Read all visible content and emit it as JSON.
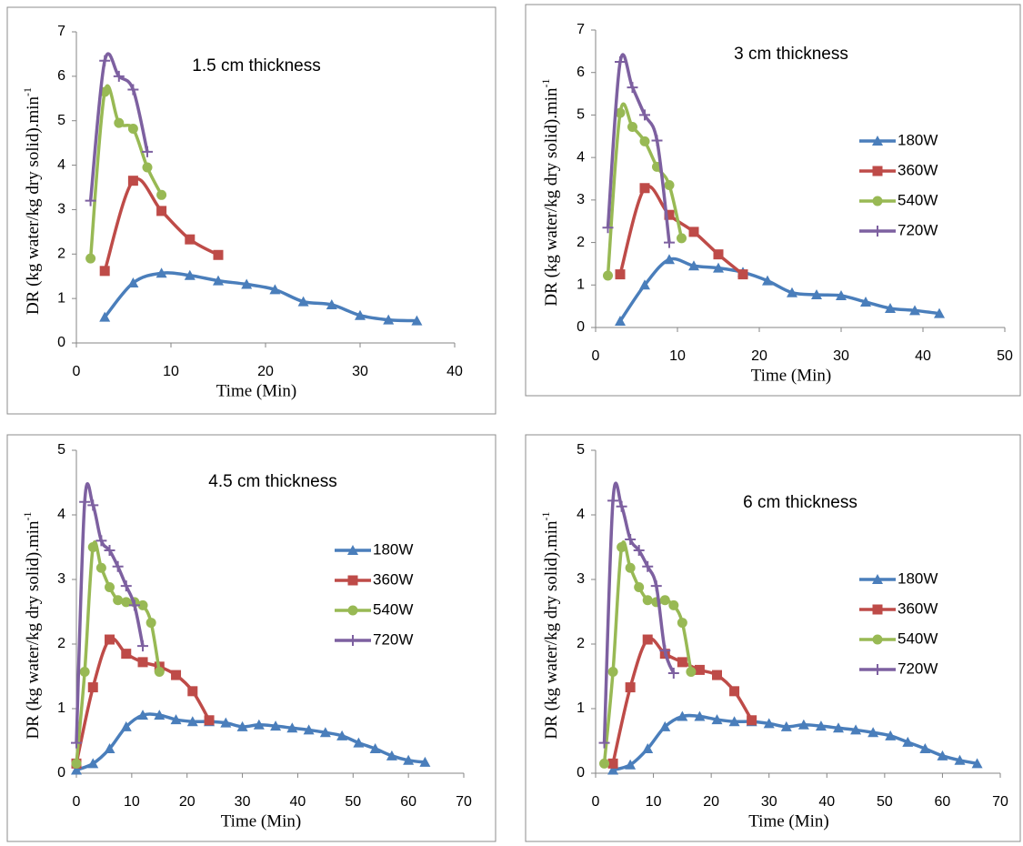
{
  "chart_data": [
    {
      "type": "line",
      "title": "1.5 cm thickness",
      "xlabel": "Time (Min)",
      "ylabel": "DR (kg water/kg dry solid).min",
      "ylabel_superscript": "-1",
      "xlim": [
        0,
        40
      ],
      "xticks": [
        0,
        10,
        20,
        30,
        40
      ],
      "ylim": [
        0,
        7
      ],
      "yticks": [
        0,
        1,
        2,
        3,
        4,
        5,
        6,
        7
      ],
      "legend": false,
      "series": [
        {
          "color": "#4a7ebb",
          "marker": "triangle",
          "x": [
            3,
            6,
            9,
            12,
            15,
            18,
            21,
            24,
            27,
            30,
            33,
            36
          ],
          "values": [
            0.58,
            1.35,
            1.57,
            1.52,
            1.4,
            1.32,
            1.2,
            0.93,
            0.86,
            0.62,
            0.52,
            0.5
          ]
        },
        {
          "color": "#be4b48",
          "marker": "square",
          "x": [
            3,
            6,
            9,
            12,
            15
          ],
          "values": [
            1.62,
            3.65,
            2.97,
            2.33,
            1.98
          ]
        },
        {
          "color": "#98b954",
          "marker": "circle",
          "x": [
            1.5,
            3,
            4.5,
            6,
            7.5,
            9
          ],
          "values": [
            1.9,
            5.65,
            4.95,
            4.82,
            3.95,
            3.33
          ]
        },
        {
          "color": "#7d60a0",
          "marker": "plus",
          "x": [
            1.5,
            3,
            4.5,
            6,
            7.5
          ],
          "values": [
            3.2,
            6.35,
            6.0,
            5.7,
            4.3
          ]
        }
      ]
    },
    {
      "type": "line",
      "title": "3 cm thickness",
      "xlabel": "Time (Min)",
      "ylabel": "DR (kg water/kg dry solid).min",
      "ylabel_superscript": "-1",
      "xlim": [
        0,
        50
      ],
      "xticks": [
        0,
        10,
        20,
        30,
        40,
        50
      ],
      "ylim": [
        0,
        7
      ],
      "yticks": [
        0,
        1,
        2,
        3,
        4,
        5,
        6,
        7
      ],
      "legend": "right",
      "series": [
        {
          "name": "180W",
          "color": "#4a7ebb",
          "marker": "triangle",
          "x": [
            3,
            6,
            9,
            12,
            15,
            18,
            21,
            24,
            27,
            30,
            33,
            36,
            39,
            42
          ],
          "values": [
            0.15,
            1.0,
            1.6,
            1.45,
            1.4,
            1.3,
            1.1,
            0.82,
            0.77,
            0.75,
            0.6,
            0.45,
            0.4,
            0.33
          ]
        },
        {
          "name": "360W",
          "color": "#be4b48",
          "marker": "square",
          "x": [
            3,
            6,
            9,
            12,
            15,
            18
          ],
          "values": [
            1.25,
            3.28,
            2.65,
            2.25,
            1.72,
            1.25
          ]
        },
        {
          "name": "540W",
          "color": "#98b954",
          "marker": "circle",
          "x": [
            1.5,
            3,
            4.5,
            6,
            7.5,
            9,
            10.5
          ],
          "values": [
            1.22,
            5.05,
            4.72,
            4.38,
            3.78,
            3.35,
            2.1
          ]
        },
        {
          "name": "720W",
          "color": "#7d60a0",
          "marker": "plus",
          "x": [
            1.5,
            3,
            4.5,
            6,
            7.5,
            9
          ],
          "values": [
            2.35,
            6.25,
            5.65,
            5.0,
            4.4,
            2.0
          ]
        }
      ]
    },
    {
      "type": "line",
      "title": "4.5 cm thickness",
      "xlabel": "Time (Min)",
      "ylabel": "DR (kg water/kg dry solid).min",
      "ylabel_superscript": "-1",
      "xlim": [
        0,
        70
      ],
      "xticks": [
        0,
        10,
        20,
        30,
        40,
        50,
        60,
        70
      ],
      "ylim": [
        0,
        5
      ],
      "yticks": [
        0,
        1,
        2,
        3,
        4,
        5
      ],
      "legend": "right",
      "series": [
        {
          "name": "180W",
          "color": "#4a7ebb",
          "marker": "triangle",
          "x": [
            0,
            3,
            6,
            9,
            12,
            15,
            18,
            21,
            24,
            27,
            30,
            33,
            36,
            39,
            42,
            45,
            48,
            51,
            54,
            57,
            60,
            63
          ],
          "values": [
            0.05,
            0.15,
            0.38,
            0.72,
            0.9,
            0.9,
            0.83,
            0.8,
            0.8,
            0.78,
            0.72,
            0.75,
            0.73,
            0.7,
            0.67,
            0.63,
            0.58,
            0.47,
            0.38,
            0.27,
            0.2,
            0.17
          ]
        },
        {
          "name": "360W",
          "color": "#be4b48",
          "marker": "square",
          "x": [
            0,
            3,
            6,
            9,
            12,
            15,
            18,
            21,
            24
          ],
          "values": [
            0.15,
            1.33,
            2.07,
            1.85,
            1.72,
            1.65,
            1.52,
            1.27,
            0.82
          ]
        },
        {
          "name": "540W",
          "color": "#98b954",
          "marker": "circle",
          "x": [
            0,
            1.5,
            3,
            4.5,
            6,
            7.5,
            9,
            10.5,
            12,
            13.5,
            15
          ],
          "values": [
            0.15,
            1.57,
            3.5,
            3.18,
            2.88,
            2.68,
            2.65,
            2.65,
            2.6,
            2.33,
            1.57
          ]
        },
        {
          "name": "720W",
          "color": "#7d60a0",
          "marker": "plus",
          "x": [
            0,
            1.5,
            3,
            4.5,
            6,
            7.5,
            9,
            10.5,
            12
          ],
          "values": [
            0.47,
            4.2,
            4.15,
            3.6,
            3.45,
            3.2,
            2.9,
            2.6,
            1.97
          ]
        }
      ]
    },
    {
      "type": "line",
      "title": "6 cm thickness",
      "xlabel": "Time (Min)",
      "ylabel": "DR (kg water/kg dry solid).min",
      "ylabel_superscript": "-1",
      "xlim": [
        0,
        70
      ],
      "xticks": [
        0,
        10,
        20,
        30,
        40,
        50,
        60,
        70
      ],
      "ylim": [
        0,
        5
      ],
      "yticks": [
        0,
        1,
        2,
        3,
        4,
        5
      ],
      "legend": "right",
      "series": [
        {
          "name": "180W",
          "color": "#4a7ebb",
          "marker": "triangle",
          "x": [
            3,
            6,
            9,
            12,
            15,
            18,
            21,
            24,
            27,
            30,
            33,
            36,
            39,
            42,
            45,
            48,
            51,
            54,
            57,
            60,
            63,
            66
          ],
          "values": [
            0.05,
            0.13,
            0.38,
            0.72,
            0.88,
            0.88,
            0.83,
            0.8,
            0.8,
            0.77,
            0.72,
            0.75,
            0.73,
            0.7,
            0.67,
            0.63,
            0.58,
            0.48,
            0.38,
            0.27,
            0.2,
            0.15
          ]
        },
        {
          "name": "360W",
          "color": "#be4b48",
          "marker": "square",
          "x": [
            3,
            6,
            9,
            12,
            15,
            18,
            21,
            24,
            27
          ],
          "values": [
            0.15,
            1.33,
            2.07,
            1.85,
            1.72,
            1.6,
            1.52,
            1.27,
            0.82
          ]
        },
        {
          "name": "540W",
          "color": "#98b954",
          "marker": "circle",
          "x": [
            1.5,
            3,
            4.5,
            6,
            7.5,
            9,
            10.5,
            12,
            13.5,
            15,
            16.5
          ],
          "values": [
            0.15,
            1.57,
            3.5,
            3.18,
            2.88,
            2.68,
            2.65,
            2.68,
            2.6,
            2.33,
            1.57
          ]
        },
        {
          "name": "720W",
          "color": "#7d60a0",
          "marker": "plus",
          "x": [
            1.5,
            3,
            4.5,
            6,
            7.5,
            9,
            10.5,
            12,
            13.5
          ],
          "values": [
            0.47,
            4.22,
            4.13,
            3.62,
            3.45,
            3.2,
            2.9,
            1.9,
            1.55
          ]
        }
      ]
    }
  ]
}
